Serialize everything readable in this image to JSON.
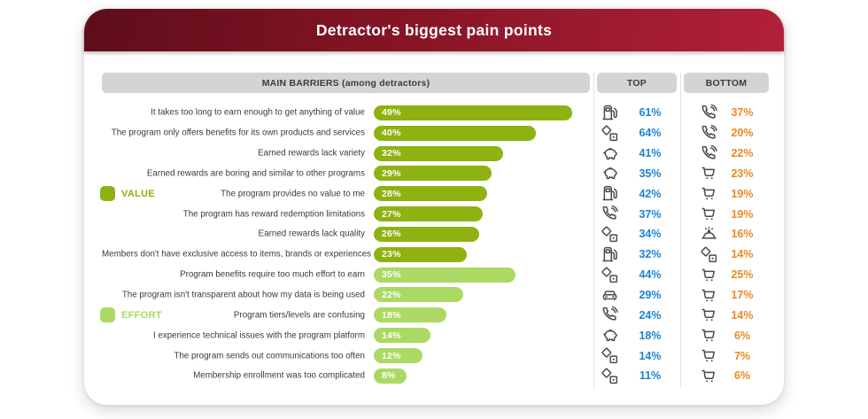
{
  "title": "Detractor's biggest pain points",
  "table": {
    "main_header": "MAIN BARRIERS (among detractors)",
    "top_header": "TOP",
    "bottom_header": "BOTTOM"
  },
  "legends": [
    {
      "label": "VALUE",
      "color": "#8db211"
    },
    {
      "label": "EFFORT",
      "color": "#abd963"
    }
  ],
  "colors": {
    "header_gradient_start": "#5e0d1a",
    "header_gradient_end": "#b22039",
    "value_green": "#8db211",
    "effort_green": "#abd963",
    "top_blue": "#1d83d4",
    "bottom_orange": "#f0861e",
    "icon_gray": "#4a4a4a",
    "header_bar_gray": "#d4d4d4"
  },
  "chart_data": {
    "type": "bar",
    "orientation": "horizontal",
    "title": "Detractor's biggest pain points",
    "unit": "%",
    "xlim": [
      0,
      54
    ],
    "rows": [
      {
        "label": "It takes too long to earn enough to get anything of value",
        "value": 49,
        "category": "VALUE",
        "top": {
          "icon": "fuel-pump-icon",
          "value": 61
        },
        "bottom": {
          "icon": "phone-call-icon",
          "value": 37
        }
      },
      {
        "label": "The program only offers benefits for its own products and services",
        "value": 40,
        "category": "VALUE",
        "top": {
          "icon": "dice-icon",
          "value": 64
        },
        "bottom": {
          "icon": "phone-call-icon",
          "value": 20
        }
      },
      {
        "label": "Earned rewards lack variety",
        "value": 32,
        "category": "VALUE",
        "top": {
          "icon": "piggy-bank-icon",
          "value": 41
        },
        "bottom": {
          "icon": "phone-call-icon",
          "value": 22
        }
      },
      {
        "label": "Earned rewards are boring and similar to other programs",
        "value": 29,
        "category": "VALUE",
        "top": {
          "icon": "piggy-bank-icon",
          "value": 35
        },
        "bottom": {
          "icon": "shopping-cart-icon",
          "value": 23
        }
      },
      {
        "label": "The program provides no value to me",
        "value": 28,
        "category": "VALUE",
        "top": {
          "icon": "fuel-pump-icon",
          "value": 42
        },
        "bottom": {
          "icon": "shopping-cart-icon",
          "value": 19
        }
      },
      {
        "label": "The program has reward redemption limitations",
        "value": 27,
        "category": "VALUE",
        "top": {
          "icon": "phone-call-icon",
          "value": 37
        },
        "bottom": {
          "icon": "shopping-cart-icon",
          "value": 19
        }
      },
      {
        "label": "Earned rewards lack quality",
        "value": 26,
        "category": "VALUE",
        "top": {
          "icon": "dice-icon",
          "value": 34
        },
        "bottom": {
          "icon": "food-dome-icon",
          "value": 16
        }
      },
      {
        "label": "Members don't have exclusive access to items, brands or experiences",
        "value": 23,
        "category": "VALUE",
        "top": {
          "icon": "fuel-pump-icon",
          "value": 32
        },
        "bottom": {
          "icon": "dice-icon",
          "value": 14
        }
      },
      {
        "label": "Program benefits require too much effort to earn",
        "value": 35,
        "category": "EFFORT",
        "top": {
          "icon": "dice-icon",
          "value": 44
        },
        "bottom": {
          "icon": "shopping-cart-icon",
          "value": 25
        }
      },
      {
        "label": "The program isn't transparent about how my data is being used",
        "value": 22,
        "category": "EFFORT",
        "top": {
          "icon": "car-icon",
          "value": 29
        },
        "bottom": {
          "icon": "shopping-cart-icon",
          "value": 17
        }
      },
      {
        "label": "Program tiers/levels are confusing",
        "value": 18,
        "category": "EFFORT",
        "top": {
          "icon": "phone-call-icon",
          "value": 24
        },
        "bottom": {
          "icon": "shopping-cart-icon",
          "value": 14
        }
      },
      {
        "label": "I experience technical issues with the program platform",
        "value": 14,
        "category": "EFFORT",
        "top": {
          "icon": "piggy-bank-icon",
          "value": 18
        },
        "bottom": {
          "icon": "shopping-cart-icon",
          "value": 6
        }
      },
      {
        "label": "The program sends out communications too often",
        "value": 12,
        "category": "EFFORT",
        "top": {
          "icon": "dice-icon",
          "value": 14
        },
        "bottom": {
          "icon": "shopping-cart-icon",
          "value": 7
        }
      },
      {
        "label": "Membership enrollment was too complicated",
        "value": 8,
        "category": "EFFORT",
        "top": {
          "icon": "dice-icon",
          "value": 11
        },
        "bottom": {
          "icon": "shopping-cart-icon",
          "value": 6
        }
      }
    ]
  }
}
